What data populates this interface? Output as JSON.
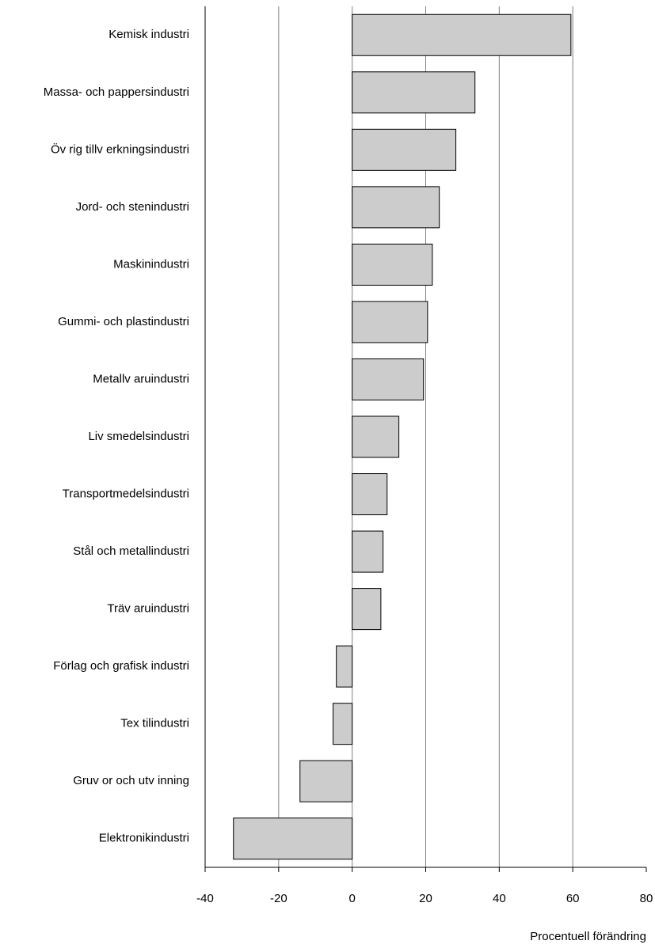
{
  "chart_data": {
    "type": "barh",
    "categories": [
      "Kemisk industri",
      "Massa- och pappersindustri",
      "Öv rig tillv erkningsindustri",
      "Jord- och stenindustri",
      "Maskinindustri",
      "Gummi- och plastindustri",
      "Metallv aruindustri",
      "Liv smedelsindustri",
      "Transportmedelsindustri",
      "Stål och metallindustri",
      "Träv aruindustri",
      "Förlag och grafisk industri",
      "Tex tilindustri",
      "Gruv or och utv inning",
      "Elektronikindustri"
    ],
    "values": [
      59.5,
      33.4,
      28.2,
      23.7,
      21.8,
      20.5,
      19.4,
      12.7,
      9.5,
      8.4,
      7.8,
      -4.3,
      -5.2,
      -14.2,
      -32.3
    ],
    "color": "#cccccc",
    "xlabel": "Procentuell förändring",
    "xlim": [
      -40,
      80
    ],
    "xticks": [
      -40,
      -20,
      0,
      20,
      40,
      60,
      80
    ],
    "grid": true
  }
}
